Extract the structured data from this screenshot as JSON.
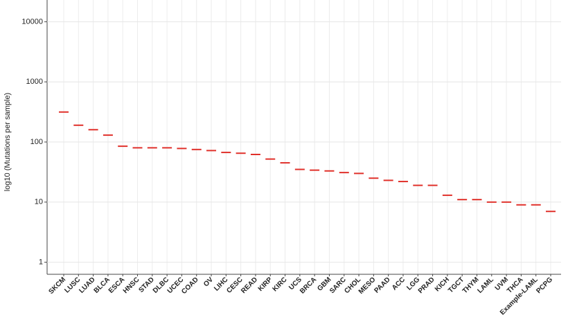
{
  "chart_data": {
    "type": "median-strip",
    "y_label": "log10 (Mutations per sample)",
    "log_y": true,
    "ylim": [
      0.63,
      23000
    ],
    "yticks": [
      1,
      10,
      100,
      1000,
      10000
    ],
    "grid": true,
    "color": "#e0302a",
    "categories": [
      "SKCM",
      "LUSC",
      "LUAD",
      "BLCA",
      "ESCA",
      "HNSC",
      "STAD",
      "DLBC",
      "UCEC",
      "COAD",
      "OV",
      "LIHC",
      "CESC",
      "READ",
      "KIRP",
      "KIRC",
      "UCS",
      "BRCA",
      "GBM",
      "SARC",
      "CHOL",
      "MESO",
      "PAAD",
      "ACC",
      "LGG",
      "PRAD",
      "KICH",
      "TGCT",
      "THYM",
      "LAML",
      "UVM",
      "THCA",
      "Example-LAML",
      "PCPG"
    ],
    "values": [
      315,
      190,
      160,
      130,
      85,
      80,
      80,
      80,
      78,
      75,
      72,
      67,
      65,
      62,
      52,
      45,
      35,
      34,
      33,
      31,
      30,
      25,
      23,
      22,
      19,
      19,
      13,
      11,
      11,
      10,
      10,
      9,
      9,
      7
    ]
  }
}
